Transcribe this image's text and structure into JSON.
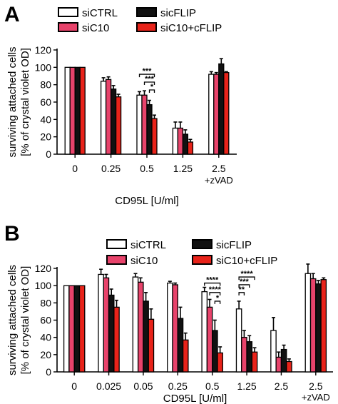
{
  "colors": {
    "siCTRL": "#ffffff",
    "siC10": "#e8436b",
    "sicFLIP": "#111111",
    "siC10+cFLIP": "#e8231a",
    "axis": "#000000"
  },
  "chart_data": [
    {
      "panel_label": "A",
      "type": "bar",
      "ylabel_line1": "surviving attached cells",
      "ylabel_line2": "[% of crystal violet OD]",
      "xlabel": "CD95L [U/ml]",
      "ylim": [
        0,
        120
      ],
      "yticks": [
        0,
        20,
        40,
        60,
        80,
        100,
        120
      ],
      "categories": [
        {
          "line1": "0",
          "line2": ""
        },
        {
          "line1": "0.25",
          "line2": ""
        },
        {
          "line1": "0.5",
          "line2": ""
        },
        {
          "line1": "1.25",
          "line2": ""
        },
        {
          "line1": "2.5",
          "line2": "+zVAD"
        }
      ],
      "legend": [
        {
          "name": "siCTRL",
          "color_key": "siCTRL"
        },
        {
          "name": "sicFLIP",
          "color_key": "sicFLIP"
        },
        {
          "name": "siC10",
          "color_key": "siC10"
        },
        {
          "name": "siC10+cFLIP",
          "color_key": "siC10+cFLIP"
        }
      ],
      "series": [
        {
          "name": "siCTRL",
          "color_key": "siCTRL",
          "values": [
            100,
            84,
            68,
            30,
            92
          ],
          "errors": [
            0,
            4,
            4,
            7,
            3
          ]
        },
        {
          "name": "siC10",
          "color_key": "siC10",
          "values": [
            100,
            86,
            68,
            30,
            92
          ],
          "errors": [
            0,
            3,
            5,
            7,
            2
          ]
        },
        {
          "name": "sicFLIP",
          "color_key": "sicFLIP",
          "values": [
            100,
            75,
            57,
            23,
            104
          ],
          "errors": [
            0,
            4,
            5,
            5,
            6
          ]
        },
        {
          "name": "siC10+cFLIP",
          "color_key": "siC10+cFLIP",
          "values": [
            100,
            66,
            41,
            14,
            94
          ],
          "errors": [
            0,
            3,
            4,
            3,
            1
          ]
        }
      ],
      "significance": [
        {
          "category": 2,
          "from": 0,
          "to": 3,
          "label": "***",
          "y": 92
        },
        {
          "category": 2,
          "from": 1,
          "to": 3,
          "label": "***",
          "y": 83
        },
        {
          "category": 2,
          "from": 2,
          "to": 3,
          "label": "*",
          "y": 74
        }
      ]
    },
    {
      "panel_label": "B",
      "type": "bar",
      "ylabel_line1": "surviving attached cells",
      "ylabel_line2": "[% of crystal violet OD]",
      "xlabel": "CD95L [U/ml]",
      "ylim": [
        0,
        120
      ],
      "yticks": [
        0,
        20,
        40,
        60,
        80,
        100,
        120
      ],
      "categories": [
        {
          "line1": "0",
          "line2": ""
        },
        {
          "line1": "0.025",
          "line2": ""
        },
        {
          "line1": "0.05",
          "line2": ""
        },
        {
          "line1": "0.25",
          "line2": ""
        },
        {
          "line1": "0.5",
          "line2": ""
        },
        {
          "line1": "1.25",
          "line2": ""
        },
        {
          "line1": "2.5",
          "line2": ""
        },
        {
          "line1": "2.5",
          "line2": "+zVAD"
        }
      ],
      "legend": [
        {
          "name": "siCTRL",
          "color_key": "siCTRL"
        },
        {
          "name": "sicFLIP",
          "color_key": "sicFLIP"
        },
        {
          "name": "siC10",
          "color_key": "siC10"
        },
        {
          "name": "siC10+cFLIP",
          "color_key": "siC10+cFLIP"
        }
      ],
      "series": [
        {
          "name": "siCTRL",
          "color_key": "siCTRL",
          "values": [
            100,
            113,
            110,
            103,
            93,
            73,
            48,
            114
          ],
          "errors": [
            0,
            6,
            4,
            2,
            5,
            9,
            15,
            11
          ]
        },
        {
          "name": "siC10",
          "color_key": "siC10",
          "values": [
            100,
            109,
            104,
            101,
            75,
            40,
            17,
            108
          ],
          "errors": [
            0,
            4,
            5,
            2,
            9,
            8,
            6,
            6
          ]
        },
        {
          "name": "sicFLIP",
          "color_key": "sicFLIP",
          "values": [
            100,
            89,
            82,
            62,
            48,
            35,
            26,
            102
          ],
          "errors": [
            0,
            7,
            10,
            13,
            12,
            7,
            5,
            4
          ]
        },
        {
          "name": "siC10+cFLIP",
          "color_key": "siC10+cFLIP",
          "values": [
            100,
            75,
            61,
            37,
            22,
            23,
            12,
            107
          ],
          "errors": [
            0,
            8,
            12,
            8,
            7,
            5,
            3,
            2
          ]
        }
      ],
      "significance": [
        {
          "category": 4,
          "from": 0,
          "to": 3,
          "label": "****",
          "y": 103
        },
        {
          "category": 4,
          "from": 1,
          "to": 3,
          "label": "****",
          "y": 92
        },
        {
          "category": 4,
          "from": 2,
          "to": 3,
          "label": "*",
          "y": 82
        },
        {
          "category": 5,
          "from": 0,
          "to": 3,
          "label": "****",
          "y": 110
        },
        {
          "category": 5,
          "from": 0,
          "to": 2,
          "label": "***",
          "y": 101
        },
        {
          "category": 5,
          "from": 0,
          "to": 1,
          "label": "**",
          "y": 92
        }
      ]
    }
  ]
}
